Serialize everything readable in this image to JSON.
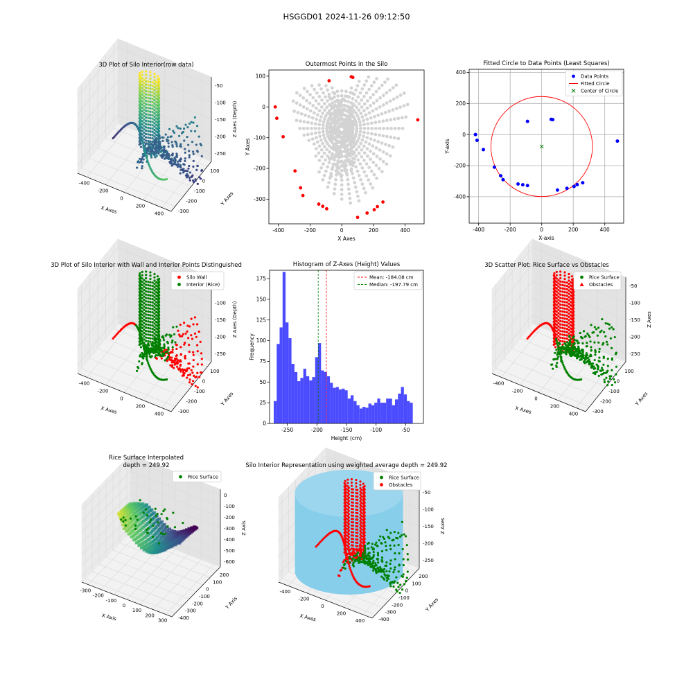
{
  "figure": {
    "suptitle": "HSGGD01 2024-11-26 09:12:50",
    "colors": {
      "gray": "#d3d3d3",
      "red": "#ff0000",
      "green": "#008000",
      "blue": "#0000ff",
      "hist": "#4b4bff",
      "skyblue": "#87ceeb"
    }
  },
  "chart_data": [
    {
      "id": "raw3d",
      "type": "scatter",
      "projection": "3d",
      "title": "3D Plot of Silo Interior(row data)",
      "xlabel": "X Axes",
      "ylabel": "Y Axes",
      "zlabel": "Z Axes (Depth)",
      "xticks": [
        -400,
        -200,
        0,
        200,
        400
      ],
      "yticks": [
        100,
        0,
        -100,
        -200,
        -300
      ],
      "zticks": [
        -50,
        -100,
        -150,
        -200,
        -250
      ],
      "colormap": "viridis"
    },
    {
      "id": "outer",
      "type": "scatter",
      "title": "Outermost Points in the Silo",
      "xlabel": "X Axes",
      "ylabel": "Y Axes",
      "xlim": [
        -460,
        520
      ],
      "ylim": [
        -380,
        120
      ],
      "xticks": [
        -400,
        -200,
        0,
        200,
        400
      ],
      "yticks": [
        100,
        0,
        -100,
        -200,
        -300
      ],
      "series": [
        {
          "name": "",
          "color": "#ff0000",
          "points": [
            [
              -420,
              0
            ],
            [
              -410,
              -37
            ],
            [
              -370,
              -97
            ],
            [
              -295,
              -208
            ],
            [
              -260,
              -263
            ],
            [
              -245,
              -288
            ],
            [
              -145,
              -316
            ],
            [
              -120,
              -323
            ],
            [
              -95,
              -331
            ],
            [
              -80,
              85
            ],
            [
              60,
              98
            ],
            [
              70,
              96
            ],
            [
              100,
              -359
            ],
            [
              160,
              -345
            ],
            [
              205,
              -334
            ],
            [
              225,
              -324
            ],
            [
              260,
              -309
            ],
            [
              480,
              -42
            ]
          ]
        }
      ]
    },
    {
      "id": "circle",
      "type": "scatter",
      "title": "Fitted Circle to Data Points (Least Squares)",
      "xlabel": "X-axis",
      "ylabel": "Y-axis",
      "xlim": [
        -460,
        520
      ],
      "ylim": [
        -570,
        420
      ],
      "xticks": [
        -400,
        -200,
        0,
        200,
        400
      ],
      "yticks": [
        400,
        200,
        0,
        -200,
        -400
      ],
      "legend": [
        "Data Points",
        "Fitted Circle",
        "Center of Circle"
      ],
      "legend_loc": "upper right",
      "circle": {
        "cx": 0,
        "cy": -77,
        "r": 322
      },
      "center": [
        0,
        -77
      ],
      "points": [
        [
          -420,
          0
        ],
        [
          -410,
          -37
        ],
        [
          -370,
          -97
        ],
        [
          -300,
          -210
        ],
        [
          -260,
          -265
        ],
        [
          -245,
          -290
        ],
        [
          -150,
          -318
        ],
        [
          -120,
          -323
        ],
        [
          -90,
          -328
        ],
        [
          -90,
          85
        ],
        [
          60,
          98
        ],
        [
          70,
          96
        ],
        [
          100,
          -357
        ],
        [
          160,
          -346
        ],
        [
          205,
          -334
        ],
        [
          225,
          -322
        ],
        [
          260,
          -310
        ],
        [
          480,
          -42
        ]
      ],
      "grid": true
    },
    {
      "id": "wall3d",
      "type": "scatter",
      "projection": "3d",
      "title": "3D Plot of Silo Interior with Wall and Interior Points Distinguished",
      "xlabel": "X Axes",
      "ylabel": "Y Axes",
      "zlabel": "Z Axes (Depth)",
      "xticks": [
        -400,
        -200,
        0,
        200,
        400
      ],
      "yticks": [
        100,
        0,
        -100,
        -200,
        -300
      ],
      "zticks": [
        -50,
        -100,
        -150,
        -200,
        -250
      ],
      "legend": [
        "Silo Wall",
        "Interior (Rice)"
      ]
    },
    {
      "id": "hist",
      "type": "bar",
      "title": "Histogram of Z-Axes (Height) Values",
      "xlabel": "Height (cm)",
      "ylabel": "Frequency",
      "xlim": [
        -280,
        -20
      ],
      "ylim": [
        0,
        185
      ],
      "xticks": [
        -250,
        -200,
        -150,
        -100,
        -50
      ],
      "yticks": [
        0,
        25,
        50,
        75,
        100,
        125,
        150,
        175
      ],
      "bin_start": -273,
      "bin_width": 5,
      "values": [
        27,
        96,
        116,
        183,
        122,
        103,
        72,
        62,
        51,
        55,
        66,
        57,
        52,
        56,
        80,
        97,
        64,
        62,
        57,
        49,
        43,
        44,
        41,
        42,
        40,
        30,
        34,
        27,
        22,
        18,
        20,
        19,
        24,
        22,
        25,
        30,
        25,
        25,
        30,
        30,
        22,
        29,
        36,
        44,
        35,
        27,
        25
      ],
      "legend": [
        "Mean: -184.08 cm",
        "Median: -197.79 cm"
      ],
      "mean": -184.08,
      "median": -197.79
    },
    {
      "id": "riceobs3d",
      "type": "scatter",
      "projection": "3d",
      "title": "3D Scatter Plot: Rice Surface vs Obstacles",
      "xlabel": "X Axes",
      "ylabel": "Y Axes",
      "zlabel": "Z Axes",
      "xticks": [
        -400,
        -200,
        0,
        200,
        400
      ],
      "yticks": [
        100,
        0,
        -100,
        -200,
        -300
      ],
      "zticks": [
        -50,
        -100,
        -150,
        -200,
        -250
      ],
      "legend": [
        "Rice Surface",
        "Obstacles"
      ]
    },
    {
      "id": "interp3d",
      "type": "scatter",
      "projection": "3d",
      "title": "Rice Surface Interpolated",
      "title2": "depth = 249.92",
      "xlabel": "X Axis",
      "ylabel": "Y Axis",
      "zlabel": "Z Axis",
      "xticks": [
        -300,
        -200,
        -100,
        0,
        100,
        200,
        300
      ],
      "yticks": [
        200,
        100,
        0,
        -100,
        -200,
        -300,
        -400
      ],
      "zticks": [
        0,
        -100,
        -200,
        -300,
        -400,
        -500,
        -600
      ],
      "legend": [
        "Rice Surface"
      ]
    },
    {
      "id": "silo3d",
      "type": "scatter",
      "projection": "3d",
      "title": "Silo Interior Representation using weighted average depth = 249.92",
      "xlabel": "X Axes",
      "ylabel": "Y Axes",
      "zlabel": "Z Axes",
      "xticks": [
        -400,
        -200,
        0,
        200,
        400
      ],
      "yticks": [
        200,
        100,
        0,
        -100,
        -200,
        -300,
        -400
      ],
      "zticks": [
        -50,
        -100,
        -150,
        -200,
        -250
      ],
      "legend": [
        "Rice Surface",
        "Obstacles"
      ]
    }
  ]
}
